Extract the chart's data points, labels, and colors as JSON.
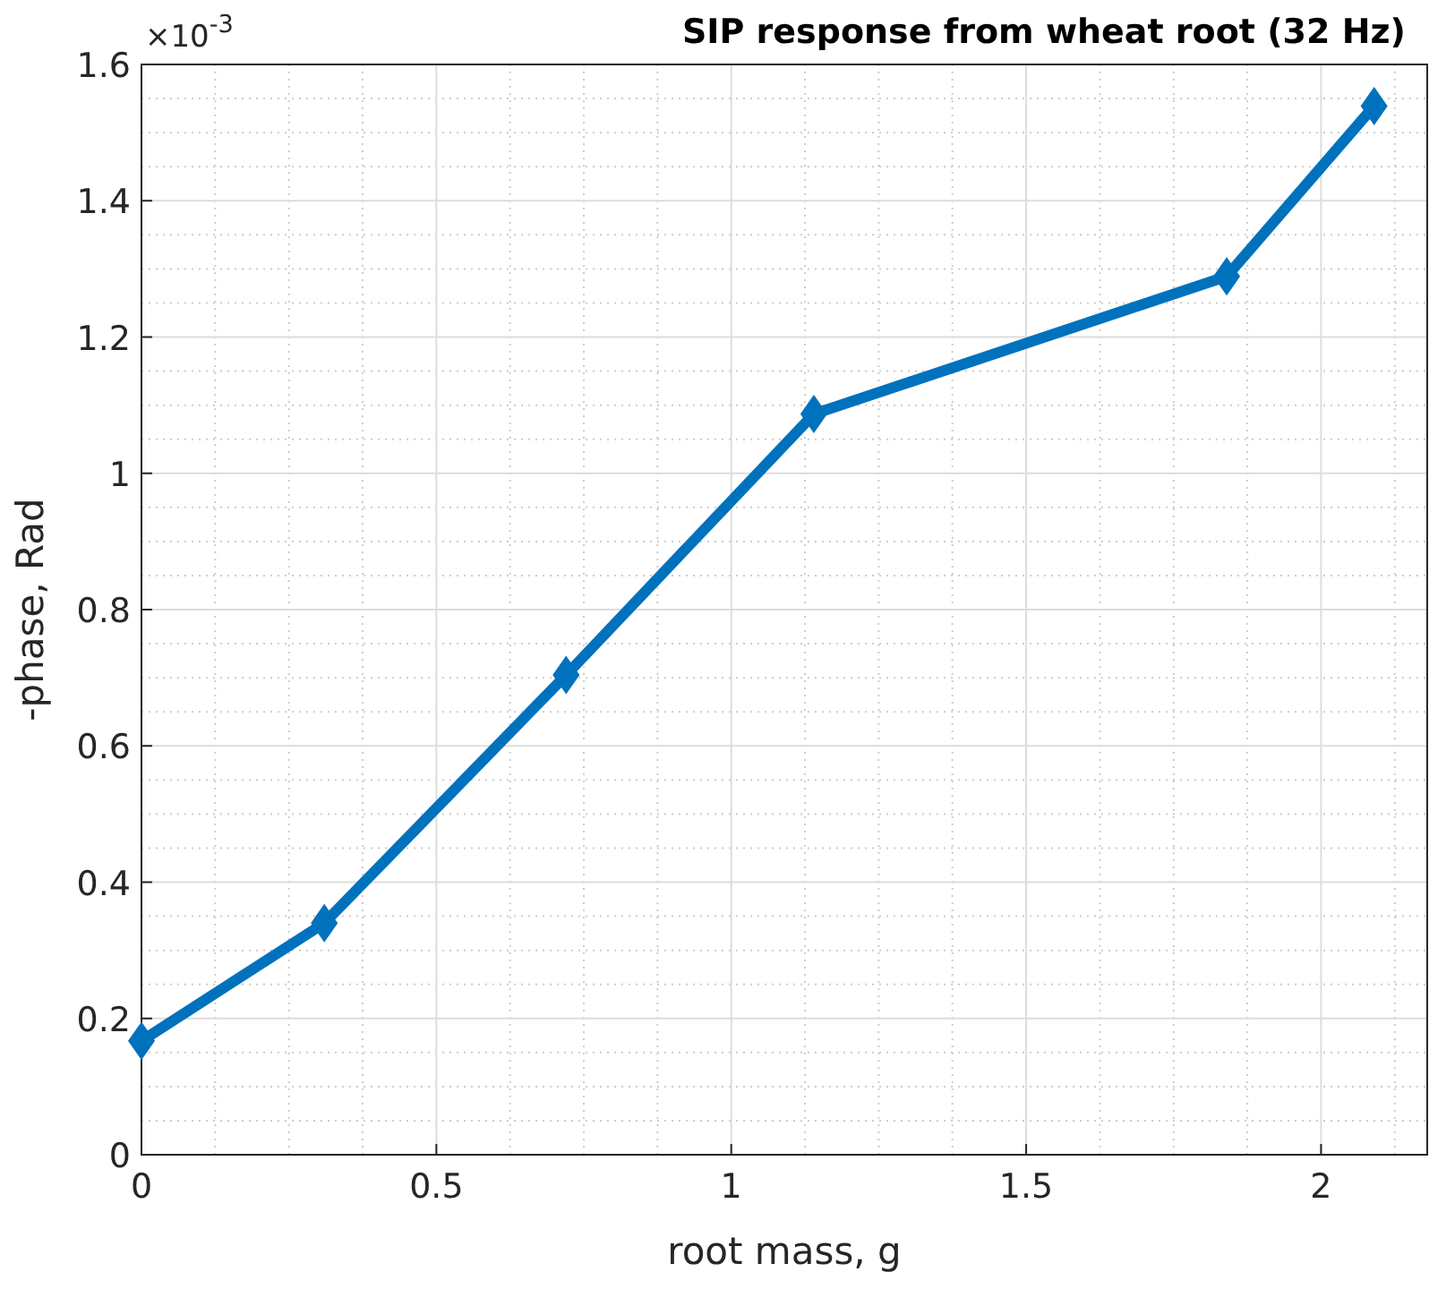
{
  "chart_data": {
    "type": "line",
    "title": "SIP response from wheat root (32 Hz)",
    "xlabel": "root mass, g",
    "ylabel": "-phase, Rad",
    "annotations": [
      "×10$^{-3}$"
    ],
    "x": [
      0,
      0.31,
      0.72,
      1.14,
      1.84,
      2.09
    ],
    "series": [
      {
        "color": "#0072bd",
        "values": [
          0.167,
          0.34,
          0.704,
          1.087,
          1.289,
          1.539
        ]
      }
    ],
    "xlim": [
      0,
      2.18
    ],
    "xticks": [
      0,
      0.5,
      1,
      1.5,
      2
    ],
    "ylim": [
      0,
      1.6
    ],
    "yticks": [
      0,
      0.2,
      0.4,
      0.6,
      0.8,
      1,
      1.2,
      1.4,
      1.6
    ],
    "grid": true,
    "marker": "diamond",
    "line_style": "solid"
  }
}
